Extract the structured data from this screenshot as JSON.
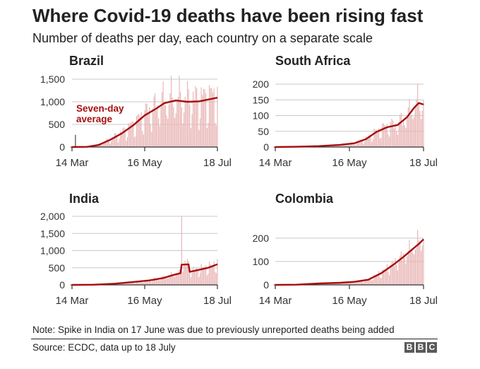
{
  "header": {
    "title": "Where Covid-19 deaths have been rising fast",
    "subtitle": "Number of deaths per day, each country on a separate scale"
  },
  "footer": {
    "note": "Note: Spike in India on 17 June was due to previously unreported deaths being added",
    "source": "Source: ECDC, data up to 18 July",
    "logo_letters": [
      "B",
      "B",
      "C"
    ]
  },
  "colors": {
    "bar": "#e8b4b4",
    "line": "#a50f0f",
    "annotation": "#a50f0f",
    "axis": "#333333",
    "grid": "#c8c8c8"
  },
  "chart_data": [
    {
      "type": "bar",
      "title": "Brazil",
      "x_start": "2020-03-14",
      "x_end": "2020-07-18",
      "xticks": [
        "14 Mar",
        "16 May",
        "18 Jul"
      ],
      "yticks": [
        0,
        500,
        1000,
        1500
      ],
      "ytick_labels": [
        "0",
        "500",
        "1,000",
        "1,500"
      ],
      "ylim": [
        0,
        1500
      ],
      "series": [
        {
          "name": "Deaths per day",
          "kind": "bar"
        },
        {
          "name": "Seven-day average",
          "kind": "line"
        }
      ],
      "annotation": {
        "text_lines": [
          "Seven-day",
          "average"
        ]
      },
      "avg_points": [
        [
          "2020-03-14",
          0
        ],
        [
          "2020-03-27",
          5
        ],
        [
          "2020-04-06",
          45
        ],
        [
          "2020-04-16",
          160
        ],
        [
          "2020-04-26",
          300
        ],
        [
          "2020-05-06",
          480
        ],
        [
          "2020-05-16",
          700
        ],
        [
          "2020-05-26",
          850
        ],
        [
          "2020-06-02",
          970
        ],
        [
          "2020-06-12",
          1030
        ],
        [
          "2020-06-22",
          1000
        ],
        [
          "2020-07-02",
          1010
        ],
        [
          "2020-07-10",
          1050
        ],
        [
          "2020-07-18",
          1090
        ]
      ]
    },
    {
      "type": "bar",
      "title": "South Africa",
      "x_start": "2020-03-14",
      "x_end": "2020-07-18",
      "xticks": [
        "14 Mar",
        "16 May",
        "18 Jul"
      ],
      "yticks": [
        0,
        50,
        100,
        150,
        200
      ],
      "ytick_labels": [
        "0",
        "50",
        "100",
        "150",
        "200"
      ],
      "ylim": [
        0,
        200
      ],
      "series": [
        {
          "name": "Deaths per day",
          "kind": "bar"
        },
        {
          "name": "Seven-day average",
          "kind": "line"
        }
      ],
      "avg_points": [
        [
          "2020-03-14",
          0
        ],
        [
          "2020-04-01",
          1
        ],
        [
          "2020-04-20",
          3
        ],
        [
          "2020-05-08",
          7
        ],
        [
          "2020-05-20",
          12
        ],
        [
          "2020-05-30",
          25
        ],
        [
          "2020-06-08",
          48
        ],
        [
          "2020-06-17",
          63
        ],
        [
          "2020-06-26",
          70
        ],
        [
          "2020-07-04",
          95
        ],
        [
          "2020-07-10",
          125
        ],
        [
          "2020-07-14",
          140
        ],
        [
          "2020-07-18",
          135
        ]
      ]
    },
    {
      "type": "bar",
      "title": "India",
      "x_start": "2020-03-14",
      "x_end": "2020-07-18",
      "xticks": [
        "14 Mar",
        "16 May",
        "18 Jul"
      ],
      "yticks": [
        0,
        500,
        1000,
        1500,
        2000
      ],
      "ytick_labels": [
        "0",
        "500",
        "1,000",
        "1,500",
        "2,000"
      ],
      "ylim": [
        0,
        2000
      ],
      "series": [
        {
          "name": "Deaths per day",
          "kind": "bar"
        },
        {
          "name": "Seven-day average",
          "kind": "line"
        }
      ],
      "spike": {
        "date": "2020-06-17",
        "value": 2003
      },
      "avg_points": [
        [
          "2020-03-14",
          0
        ],
        [
          "2020-04-01",
          5
        ],
        [
          "2020-04-20",
          35
        ],
        [
          "2020-05-05",
          80
        ],
        [
          "2020-05-20",
          130
        ],
        [
          "2020-06-01",
          200
        ],
        [
          "2020-06-10",
          290
        ],
        [
          "2020-06-16",
          340
        ],
        [
          "2020-06-17",
          590
        ],
        [
          "2020-06-23",
          600
        ],
        [
          "2020-06-24",
          380
        ],
        [
          "2020-07-01",
          430
        ],
        [
          "2020-07-10",
          500
        ],
        [
          "2020-07-18",
          600
        ]
      ]
    },
    {
      "type": "bar",
      "title": "Colombia",
      "x_start": "2020-03-14",
      "x_end": "2020-07-18",
      "xticks": [
        "14 Mar",
        "16 May",
        "18 Jul"
      ],
      "yticks": [
        0,
        100,
        200
      ],
      "ytick_labels": [
        "0",
        "100",
        "200"
      ],
      "ylim": [
        0,
        260
      ],
      "series": [
        {
          "name": "Deaths per day",
          "kind": "bar"
        },
        {
          "name": "Seven-day average",
          "kind": "line"
        }
      ],
      "avg_points": [
        [
          "2020-03-14",
          0
        ],
        [
          "2020-04-01",
          1
        ],
        [
          "2020-04-20",
          6
        ],
        [
          "2020-05-08",
          9
        ],
        [
          "2020-05-20",
          13
        ],
        [
          "2020-06-01",
          22
        ],
        [
          "2020-06-12",
          50
        ],
        [
          "2020-06-22",
          85
        ],
        [
          "2020-07-01",
          120
        ],
        [
          "2020-07-08",
          150
        ],
        [
          "2020-07-14",
          175
        ],
        [
          "2020-07-18",
          195
        ]
      ]
    }
  ]
}
